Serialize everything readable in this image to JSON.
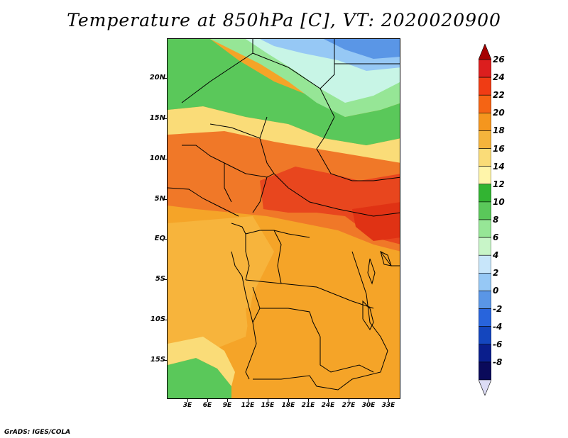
{
  "title": "Temperature at 850hPa [C], VT: 2020020900",
  "credit": "GrADS: IGES/COLA",
  "map": {
    "lat_labels": [
      "20N",
      "15N",
      "10N",
      "5N",
      "EQ",
      "5S",
      "10S",
      "15S"
    ],
    "lon_labels": [
      "3E",
      "6E",
      "9E",
      "12E",
      "15E",
      "18E",
      "21E",
      "24E",
      "27E",
      "30E",
      "33E"
    ],
    "field": "Temperature at 850hPa",
    "units": "C"
  },
  "colorbar": {
    "levels": [
      "26",
      "24",
      "22",
      "20",
      "18",
      "16",
      "14",
      "12",
      "10",
      "8",
      "6",
      "4",
      "2",
      "0",
      "-2",
      "-4",
      "-6",
      "-8"
    ],
    "colors": [
      "#a50000",
      "#dc1e1e",
      "#f03c14",
      "#f56414",
      "#f5961e",
      "#f5b43c",
      "#fadc78",
      "#fff5aa",
      "#32b432",
      "#5ac85a",
      "#96e696",
      "#c8f5c8",
      "#c8e6fa",
      "#96c8f5",
      "#5a96e6",
      "#2864dc",
      "#1446be",
      "#0a1e8c",
      "#0a0a5a",
      "#dcdcf5"
    ]
  }
}
